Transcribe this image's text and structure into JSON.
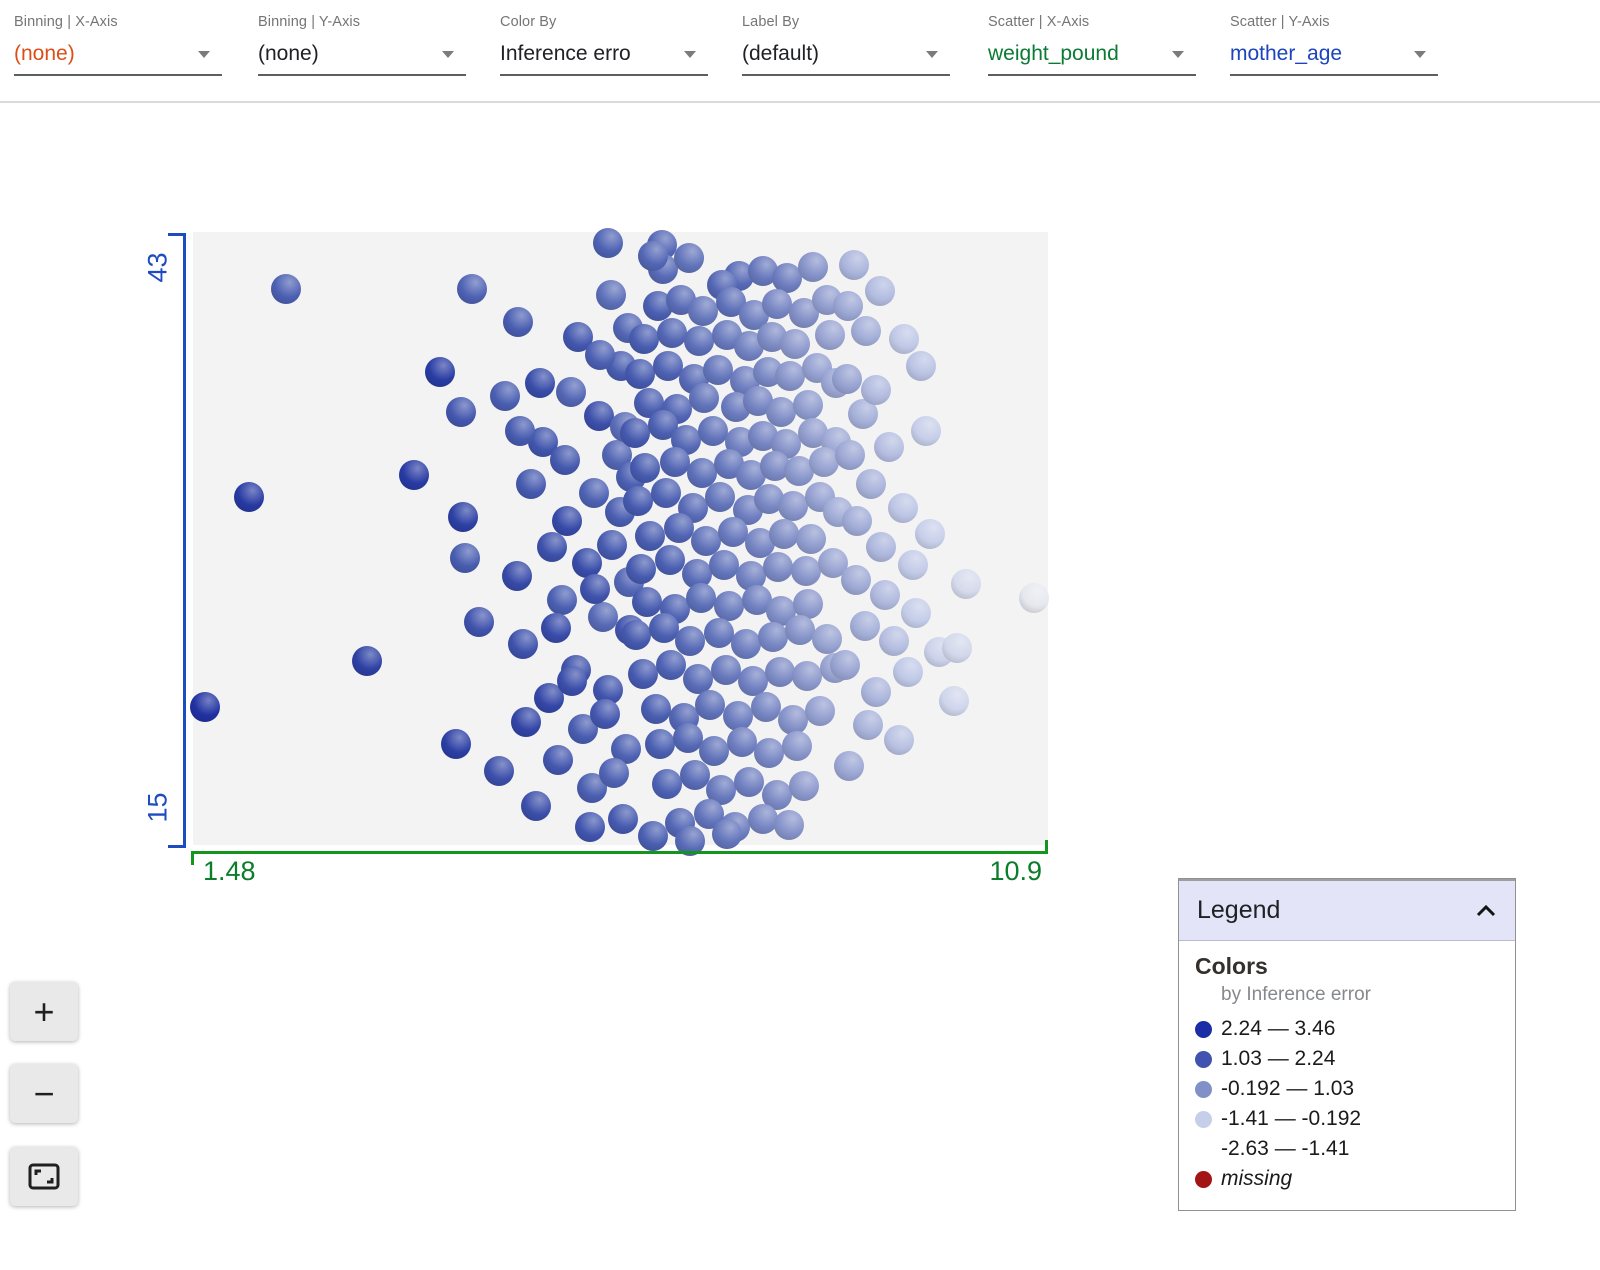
{
  "toolbar": {
    "controls": [
      {
        "label": "Binning | X-Axis",
        "value": "(none)",
        "color": "#dd4e16"
      },
      {
        "label": "Binning | Y-Axis",
        "value": "(none)",
        "color": "#202124"
      },
      {
        "label": "Color By",
        "value": "Inference erro",
        "color": "#202124"
      },
      {
        "label": "Label By",
        "value": "(default)",
        "color": "#202124"
      },
      {
        "label": "Scatter | X-Axis",
        "value": "weight_pound",
        "color": "#0b7a34"
      },
      {
        "label": "Scatter | Y-Axis",
        "value": "mother_age",
        "color": "#1b44be"
      }
    ]
  },
  "chart_data": {
    "type": "scatter",
    "xlabel": "weight_pound",
    "ylabel": "mother_age",
    "color_by": "Inference error",
    "xlim": [
      1.48,
      10.9
    ],
    "ylim": [
      15,
      43
    ],
    "x_tick_labels": [
      "1.48",
      "10.9"
    ],
    "y_tick_labels": [
      "15",
      "43"
    ],
    "grid": false,
    "color_stops": [
      {
        "v": 3.46,
        "c": "#16289f"
      },
      {
        "v": 2.24,
        "c": "#2e41a4"
      },
      {
        "v": 1.03,
        "c": "#4d61b2"
      },
      {
        "v": -0.192,
        "c": "#8693c9"
      },
      {
        "v": -1.41,
        "c": "#c5cde9"
      },
      {
        "v": -2.63,
        "c": "#eeeef0"
      }
    ],
    "points": [
      [
        1.61,
        21.3,
        2.95
      ],
      [
        2.5,
        40.4,
        1.05
      ],
      [
        2.1,
        30.9,
        2.6
      ],
      [
        3.4,
        23.4,
        2.25
      ],
      [
        4.55,
        40.4,
        1.0
      ],
      [
        4.2,
        36.6,
        2.5
      ],
      [
        4.43,
        34.8,
        1.4
      ],
      [
        3.92,
        31.9,
        2.55
      ],
      [
        4.45,
        30.0,
        2.3
      ],
      [
        4.48,
        28.1,
        1.2
      ],
      [
        4.63,
        25.2,
        1.55
      ],
      [
        4.38,
        19.6,
        2.35
      ],
      [
        4.85,
        18.4,
        1.7
      ],
      [
        4.92,
        35.5,
        1.1
      ],
      [
        5.05,
        27.3,
        1.9
      ],
      [
        5.12,
        24.2,
        1.6
      ],
      [
        5.2,
        31.5,
        1.3
      ],
      [
        5.3,
        36.1,
        1.8
      ],
      [
        5.06,
        38.9,
        1.2
      ],
      [
        5.4,
        21.7,
        2.0
      ],
      [
        5.5,
        18.9,
        1.4
      ],
      [
        5.26,
        16.8,
        1.7
      ],
      [
        5.55,
        26.2,
        1.1
      ],
      [
        5.6,
        29.8,
        1.9
      ],
      [
        5.34,
        33.4,
        1.5
      ],
      [
        5.65,
        35.7,
        0.9
      ],
      [
        5.7,
        23.0,
        1.6
      ],
      [
        5.78,
        20.3,
        1.2
      ],
      [
        5.82,
        27.9,
        1.8
      ],
      [
        5.9,
        31.1,
        1.0
      ],
      [
        5.72,
        38.2,
        1.4
      ],
      [
        5.95,
        34.6,
        1.7
      ],
      [
        6.0,
        25.4,
        0.8
      ],
      [
        6.05,
        22.1,
        1.5
      ],
      [
        5.88,
        17.6,
        1.1
      ],
      [
        6.1,
        28.7,
        1.3
      ],
      [
        6.15,
        32.8,
        0.9
      ],
      [
        6.2,
        36.9,
        1.2
      ],
      [
        6.08,
        40.1,
        0.7
      ],
      [
        6.25,
        19.4,
        1.0
      ],
      [
        6.3,
        24.8,
        1.45
      ],
      [
        6.18,
        30.2,
        1.15
      ],
      [
        6.28,
        27.0,
        0.85
      ],
      [
        5.48,
        24.9,
        1.85
      ],
      [
        5.15,
        20.6,
        2.1
      ],
      [
        6.22,
        16.2,
        1.3
      ],
      [
        5.85,
        15.8,
        1.5
      ],
      [
        6.12,
        18.3,
        0.95
      ],
      [
        5.58,
        32.6,
        1.35
      ],
      [
        5.96,
        37.4,
        1.05
      ],
      [
        6.24,
        34.1,
        0.75
      ],
      [
        5.44,
        28.6,
        1.65
      ],
      [
        5.08,
        33.9,
        1.25
      ],
      [
        6.02,
        21.0,
        1.4
      ],
      [
        6.27,
        38.6,
        0.9
      ],
      [
        5.66,
        22.5,
        1.75
      ],
      [
        6.31,
        31.8,
        1.05
      ],
      [
        5.91,
        26.7,
        1.55
      ],
      [
        6.05,
        42.5,
        1.0
      ],
      [
        6.65,
        42.4,
        0.85
      ],
      [
        6.66,
        41.3,
        0.8
      ],
      [
        6.55,
        41.9,
        0.9
      ],
      [
        6.95,
        41.8,
        0.6
      ],
      [
        7.5,
        41.0,
        0.8
      ],
      [
        7.76,
        41.2,
        0.5
      ],
      [
        7.31,
        40.6,
        0.9
      ],
      [
        8.02,
        40.9,
        0.35
      ],
      [
        8.31,
        41.4,
        -0.2
      ],
      [
        6.6,
        39.6,
        1.1
      ],
      [
        6.86,
        39.9,
        0.75
      ],
      [
        7.1,
        39.4,
        0.5
      ],
      [
        7.41,
        39.8,
        0.65
      ],
      [
        7.66,
        39.2,
        0.3
      ],
      [
        7.91,
        39.7,
        0.15
      ],
      [
        8.21,
        39.3,
        -0.1
      ],
      [
        8.46,
        39.9,
        -0.4
      ],
      [
        6.45,
        38.1,
        1.2
      ],
      [
        6.76,
        38.4,
        0.9
      ],
      [
        7.05,
        38.0,
        0.7
      ],
      [
        7.36,
        38.3,
        0.45
      ],
      [
        7.61,
        37.8,
        0.25
      ],
      [
        7.86,
        38.2,
        0.0
      ],
      [
        8.11,
        37.9,
        -0.3
      ],
      [
        8.5,
        38.3,
        -0.55
      ],
      [
        6.4,
        36.5,
        1.3
      ],
      [
        6.71,
        36.9,
        1.0
      ],
      [
        7.0,
        36.3,
        0.8
      ],
      [
        7.26,
        36.7,
        0.55
      ],
      [
        7.56,
        36.2,
        0.35
      ],
      [
        7.81,
        36.6,
        0.1
      ],
      [
        8.06,
        36.4,
        -0.2
      ],
      [
        8.36,
        36.8,
        -0.45
      ],
      [
        8.56,
        36.1,
        -0.6
      ],
      [
        6.5,
        35.2,
        1.15
      ],
      [
        6.81,
        34.9,
        0.95
      ],
      [
        7.11,
        35.4,
        0.6
      ],
      [
        7.46,
        35.0,
        0.4
      ],
      [
        7.71,
        35.3,
        0.2
      ],
      [
        7.96,
        34.8,
        -0.05
      ],
      [
        8.26,
        35.1,
        -0.35
      ],
      [
        6.35,
        33.8,
        1.35
      ],
      [
        6.66,
        34.2,
        1.05
      ],
      [
        6.91,
        33.5,
        0.85
      ],
      [
        7.21,
        33.9,
        0.6
      ],
      [
        7.51,
        33.4,
        0.3
      ],
      [
        7.76,
        33.7,
        0.15
      ],
      [
        8.01,
        33.3,
        -0.15
      ],
      [
        8.31,
        33.8,
        -0.4
      ],
      [
        8.56,
        33.4,
        -0.65
      ],
      [
        6.46,
        32.2,
        1.25
      ],
      [
        6.79,
        32.5,
        0.9
      ],
      [
        7.09,
        32.0,
        0.7
      ],
      [
        7.39,
        32.4,
        0.5
      ],
      [
        7.63,
        31.9,
        0.25
      ],
      [
        7.89,
        32.3,
        0.05
      ],
      [
        8.16,
        32.1,
        -0.25
      ],
      [
        8.43,
        32.5,
        -0.5
      ],
      [
        6.38,
        30.7,
        1.3
      ],
      [
        6.69,
        31.1,
        1.0
      ],
      [
        6.99,
        30.4,
        0.8
      ],
      [
        7.29,
        30.9,
        0.55
      ],
      [
        7.59,
        30.3,
        0.35
      ],
      [
        7.83,
        30.8,
        0.1
      ],
      [
        8.09,
        30.5,
        -0.2
      ],
      [
        8.39,
        30.9,
        -0.45
      ],
      [
        8.59,
        30.2,
        -0.7
      ],
      [
        6.52,
        29.1,
        1.2
      ],
      [
        6.83,
        29.5,
        0.95
      ],
      [
        7.13,
        28.9,
        0.65
      ],
      [
        7.43,
        29.3,
        0.45
      ],
      [
        7.73,
        28.8,
        0.2
      ],
      [
        7.99,
        29.2,
        -0.05
      ],
      [
        8.29,
        29.0,
        -0.35
      ],
      [
        6.42,
        27.6,
        1.3
      ],
      [
        6.73,
        28.0,
        1.05
      ],
      [
        7.03,
        27.4,
        0.75
      ],
      [
        7.33,
        27.8,
        0.55
      ],
      [
        7.63,
        27.3,
        0.3
      ],
      [
        7.93,
        27.7,
        0.05
      ],
      [
        8.23,
        27.5,
        -0.25
      ],
      [
        8.53,
        27.9,
        -0.55
      ],
      [
        6.48,
        26.1,
        1.25
      ],
      [
        6.79,
        25.8,
        0.95
      ],
      [
        7.08,
        26.3,
        0.7
      ],
      [
        7.39,
        25.9,
        0.45
      ],
      [
        7.69,
        26.2,
        0.25
      ],
      [
        7.96,
        25.7,
        -0.05
      ],
      [
        8.26,
        26.0,
        -0.3
      ],
      [
        6.36,
        24.6,
        1.35
      ],
      [
        6.67,
        24.9,
        1.05
      ],
      [
        6.96,
        24.3,
        0.8
      ],
      [
        7.27,
        24.7,
        0.6
      ],
      [
        7.57,
        24.2,
        0.35
      ],
      [
        7.87,
        24.5,
        0.1
      ],
      [
        8.17,
        24.8,
        -0.2
      ],
      [
        8.47,
        24.4,
        -0.5
      ],
      [
        6.44,
        22.8,
        1.3
      ],
      [
        6.75,
        23.2,
        1.0
      ],
      [
        7.04,
        22.6,
        0.75
      ],
      [
        7.35,
        23.0,
        0.5
      ],
      [
        7.65,
        22.5,
        0.3
      ],
      [
        7.95,
        22.9,
        0.0
      ],
      [
        8.25,
        22.7,
        -0.3
      ],
      [
        8.55,
        23.1,
        -0.55
      ],
      [
        6.58,
        21.2,
        1.15
      ],
      [
        6.89,
        20.8,
        0.9
      ],
      [
        7.18,
        21.4,
        0.65
      ],
      [
        7.49,
        20.9,
        0.4
      ],
      [
        7.79,
        21.3,
        0.15
      ],
      [
        8.09,
        20.7,
        -0.15
      ],
      [
        8.39,
        21.1,
        -0.45
      ],
      [
        6.62,
        19.6,
        1.1
      ],
      [
        6.93,
        19.9,
        0.85
      ],
      [
        7.22,
        19.3,
        0.6
      ],
      [
        7.53,
        19.7,
        0.35
      ],
      [
        7.83,
        19.2,
        0.1
      ],
      [
        8.13,
        19.5,
        -0.25
      ],
      [
        6.7,
        17.8,
        1.0
      ],
      [
        7.01,
        18.2,
        0.75
      ],
      [
        7.3,
        17.5,
        0.5
      ],
      [
        7.61,
        17.9,
        0.3
      ],
      [
        7.91,
        17.3,
        0.05
      ],
      [
        8.21,
        17.7,
        -0.3
      ],
      [
        6.85,
        16.0,
        0.9
      ],
      [
        7.16,
        16.4,
        0.6
      ],
      [
        7.45,
        15.8,
        0.4
      ],
      [
        7.76,
        16.2,
        0.1
      ],
      [
        8.05,
        15.9,
        -0.2
      ],
      [
        6.55,
        15.4,
        1.1
      ],
      [
        6.96,
        15.2,
        0.8
      ],
      [
        7.36,
        15.5,
        0.55
      ],
      [
        8.7,
        39.6,
        -0.6
      ],
      [
        8.76,
        41.5,
        -0.9
      ],
      [
        8.9,
        38.5,
        -0.75
      ],
      [
        8.68,
        36.3,
        -0.5
      ],
      [
        8.86,
        34.7,
        -0.8
      ],
      [
        9.01,
        35.8,
        -1.0
      ],
      [
        8.72,
        32.8,
        -0.6
      ],
      [
        8.95,
        31.5,
        -0.85
      ],
      [
        9.15,
        33.2,
        -1.1
      ],
      [
        8.8,
        29.8,
        -0.7
      ],
      [
        9.06,
        28.6,
        -0.95
      ],
      [
        9.3,
        30.4,
        -1.25
      ],
      [
        8.78,
        27.1,
        -0.65
      ],
      [
        9.1,
        26.4,
        -1.0
      ],
      [
        9.41,
        27.8,
        -1.35
      ],
      [
        8.88,
        25.0,
        -0.8
      ],
      [
        9.2,
        24.3,
        -1.1
      ],
      [
        8.66,
        23.2,
        -0.55
      ],
      [
        9.0,
        22.0,
        -0.9
      ],
      [
        9.36,
        22.9,
        -1.3
      ],
      [
        8.92,
        20.5,
        -0.85
      ],
      [
        9.26,
        19.8,
        -1.15
      ],
      [
        8.71,
        18.6,
        -0.6
      ],
      [
        9.45,
        25.6,
        -1.4
      ],
      [
        9.6,
        29.2,
        -1.5
      ],
      [
        9.56,
        33.9,
        -1.45
      ],
      [
        9.7,
        23.8,
        -1.6
      ],
      [
        10.0,
        26.9,
        -1.9
      ],
      [
        10.75,
        26.3,
        -2.4
      ],
      [
        9.5,
        36.9,
        -1.2
      ],
      [
        9.05,
        40.3,
        -1.05
      ],
      [
        9.31,
        38.1,
        -1.3
      ],
      [
        9.9,
        24.0,
        -1.8
      ],
      [
        9.86,
        21.6,
        -1.7
      ]
    ]
  },
  "axes": {
    "y_max_label": "43",
    "y_min_label": "15",
    "x_min_label": "1.48",
    "x_max_label": "10.9"
  },
  "zoom_controls": {
    "zoom_in": "+",
    "zoom_out": "−"
  },
  "legend": {
    "title": "Legend",
    "section_title": "Colors",
    "subtitle": "by Inference error",
    "entries": [
      {
        "swatch": "#1b2ea6",
        "label": "2.24 — 3.46"
      },
      {
        "swatch": "#4153b1",
        "label": "1.03 — 2.24"
      },
      {
        "swatch": "#8290c8",
        "label": "-0.192 — 1.03"
      },
      {
        "swatch": "#c6cfea",
        "label": "-1.41 — -0.192"
      },
      {
        "swatch": "transparent",
        "label": "-2.63 — -1.41"
      },
      {
        "swatch": "#a31515",
        "label": "missing",
        "italic": true
      }
    ]
  }
}
